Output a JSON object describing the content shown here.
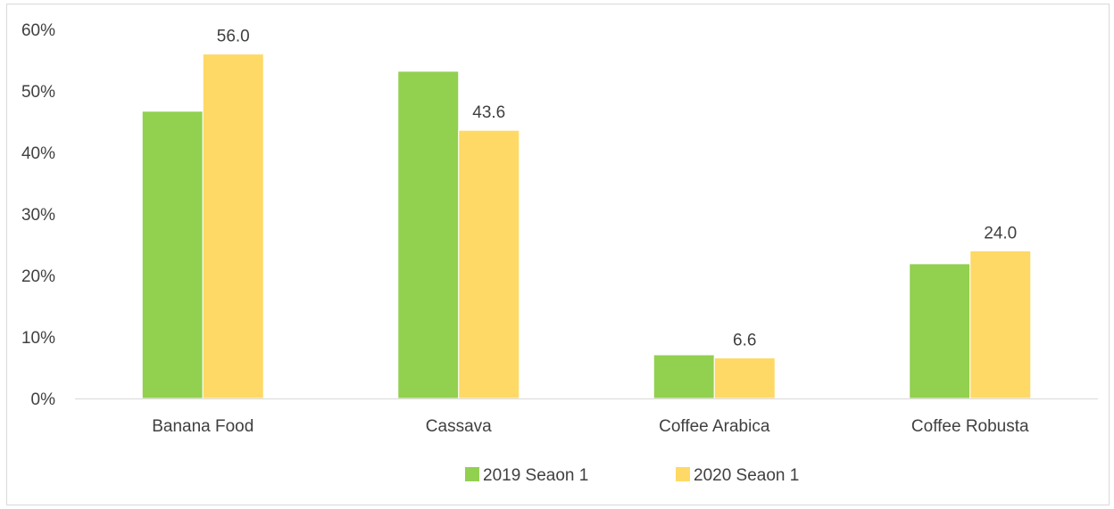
{
  "chart_data": {
    "type": "bar",
    "categories": [
      "Banana Food",
      "Cassava",
      "Coffee Arabica",
      "Coffee Robusta"
    ],
    "series": [
      {
        "name": "2019 Seaon 1",
        "color": "#92d050",
        "values": [
          46.7,
          53.2,
          7.1,
          21.9
        ],
        "data_labels": [
          "",
          "",
          "",
          ""
        ]
      },
      {
        "name": "2020 Seaon 1",
        "color": "#ffd966",
        "values": [
          56.0,
          43.6,
          6.6,
          24.0
        ],
        "data_labels": [
          "56.0",
          "43.6",
          "6.6",
          "24.0"
        ]
      }
    ],
    "ylim": [
      0,
      60
    ],
    "y_ticks": [
      0,
      10,
      20,
      30,
      40,
      50,
      60
    ],
    "y_tick_labels": [
      "0%",
      "10%",
      "20%",
      "30%",
      "40%",
      "50%",
      "60%"
    ],
    "grid": false,
    "legend_position": "bottom"
  }
}
